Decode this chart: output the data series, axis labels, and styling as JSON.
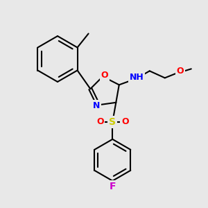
{
  "background_color": "#e8e8e8",
  "bond_color": "#000000",
  "bond_width": 1.5,
  "atom_colors": {
    "N": "#0000FF",
    "O": "#FF0000",
    "S": "#CCCC00",
    "F": "#CC00CC",
    "C": "#000000",
    "H": "#000000"
  },
  "font_size": 9,
  "font_size_small": 8
}
